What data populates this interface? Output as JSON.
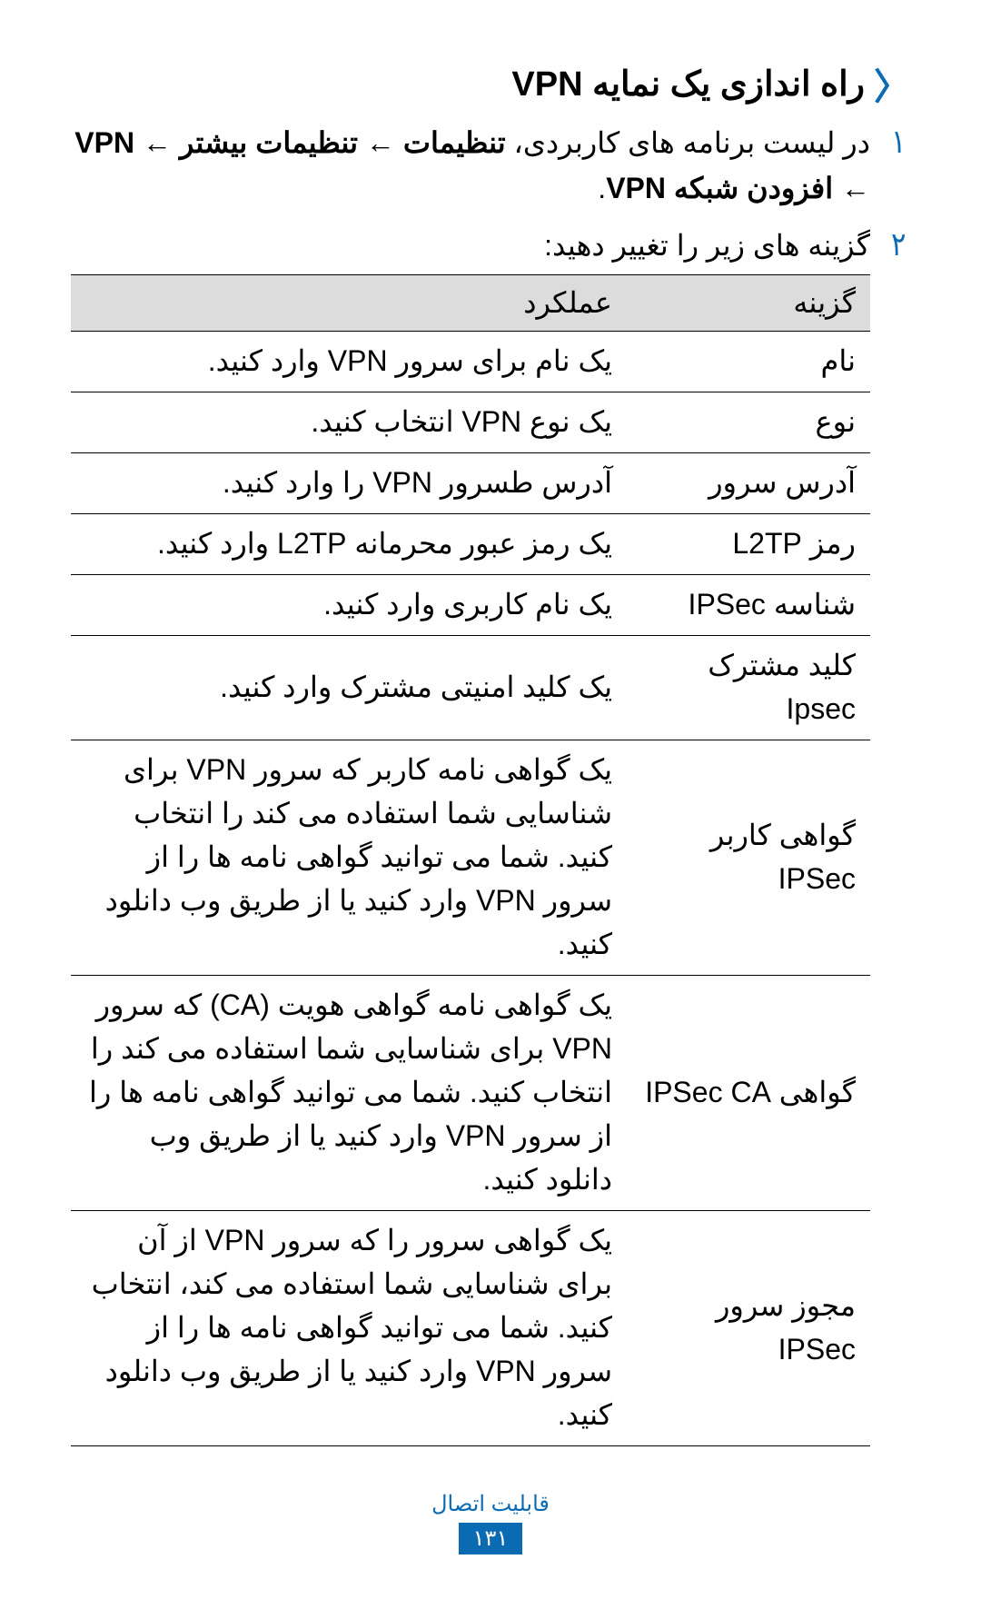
{
  "heading": {
    "marker_color": "#0a6bb3",
    "title": "راه اندازی یک نمایه VPN"
  },
  "steps": [
    {
      "num": "۱",
      "body_html": "در لیست برنامه های کاربردی، <b>تنظیمات</b> ← <b>تنظیمات بیشتر</b> ← <b>VPN</b> ← <b>افزودن شبکه VPN</b>."
    },
    {
      "num": "۲",
      "body_html": "گزینه های زیر را تغییر دهید:"
    }
  ],
  "table": {
    "header_bg": "#dcdcdc",
    "border_color": "#000000",
    "columns": {
      "option": "گزینه",
      "function": "عملکرد"
    },
    "rows": [
      {
        "option": "نام",
        "function": "یک نام برای سرور VPN وارد کنید."
      },
      {
        "option": "نوع",
        "function": "یک نوع VPN انتخاب کنید."
      },
      {
        "option": "آدرس سرور",
        "function": "آدرس طسرور VPN را وارد کنید."
      },
      {
        "option": "رمز L2TP",
        "function": "یک رمز عبور محرمانه L2TP وارد کنید."
      },
      {
        "option": "شناسه IPSec",
        "function": "یک نام کاربری وارد کنید."
      },
      {
        "option": "کلید مشترک Ipsec",
        "function": "یک کلید امنیتی مشترک وارد کنید."
      },
      {
        "option": "گواهی کاربر IPSec",
        "function": "یک گواهی نامه کاربر که سرور VPN برای شناسایی شما استفاده می کند را انتخاب کنید. شما می توانید گواهی نامه ها را از سرور VPN وارد کنید یا از طریق وب دانلود کنید."
      },
      {
        "option": "گواهی IPSec CA",
        "function": "یک گواهی نامه گواهی هویت (CA) که سرور VPN برای شناسایی شما استفاده می کند را انتخاب کنید. شما می توانید گواهی نامه ها را از سرور VPN وارد کنید یا از طریق وب دانلود کنید."
      },
      {
        "option": "مجوز سرور IPSec",
        "function": "یک گواهی سرور را که سرور VPN از آن برای شناسایی شما استفاده می کند، انتخاب کنید. شما می توانید گواهی نامه ها را از سرور VPN وارد کنید یا از طریق وب دانلود کنید."
      }
    ]
  },
  "footer": {
    "section_label": "قابلیت اتصال",
    "page_number": "۱۳۱",
    "label_color": "#0a6bb3",
    "badge_bg": "#0a6bb3",
    "badge_fg": "#ffffff"
  }
}
